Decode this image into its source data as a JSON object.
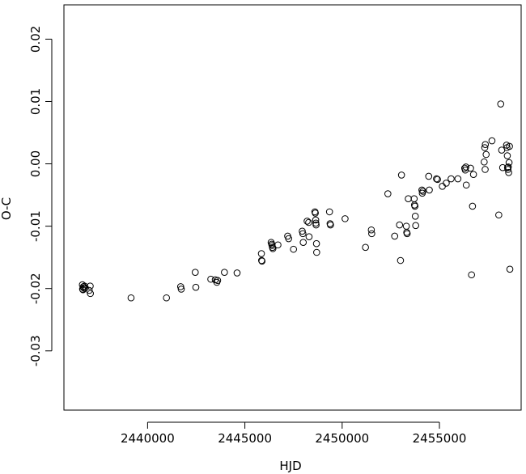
{
  "chart_data": {
    "type": "scatter",
    "title": "",
    "xlabel": "HJD",
    "ylabel": "O-C",
    "xlim": [
      2435700,
      2459200
    ],
    "ylim": [
      -0.0395,
      0.0255
    ],
    "grid": false,
    "x_ticks": [
      2440000,
      2445000,
      2450000,
      2455000
    ],
    "x_tick_labels": [
      "2440000",
      "2445000",
      "2450000",
      "2455000"
    ],
    "y_ticks": [
      -0.03,
      -0.02,
      -0.01,
      0.0,
      0.01,
      0.02
    ],
    "y_tick_labels": [
      "-0.03",
      "-0.02",
      "-0.01",
      "0.00",
      "0.01",
      "0.02"
    ],
    "marker": "open-circle",
    "series": [
      {
        "points": [
          [
            2436650,
            -0.0194
          ],
          [
            2436700,
            -0.0197
          ],
          [
            2436720,
            -0.0199
          ],
          [
            2436680,
            -0.0202
          ],
          [
            2436760,
            -0.0196
          ],
          [
            2436800,
            -0.0199
          ],
          [
            2436660,
            -0.0201
          ],
          [
            2437050,
            -0.0196
          ],
          [
            2437000,
            -0.0203
          ],
          [
            2437060,
            -0.0208
          ],
          [
            2439150,
            -0.0215
          ],
          [
            2440970,
            -0.0215
          ],
          [
            2441700,
            -0.0197
          ],
          [
            2441730,
            -0.0201
          ],
          [
            2442450,
            -0.0174
          ],
          [
            2442480,
            -0.0198
          ],
          [
            2443250,
            -0.0185
          ],
          [
            2443480,
            -0.0186
          ],
          [
            2443600,
            -0.0187
          ],
          [
            2443560,
            -0.019
          ],
          [
            2443950,
            -0.0174
          ],
          [
            2444600,
            -0.0175
          ],
          [
            2445850,
            -0.0144
          ],
          [
            2445860,
            -0.0155
          ],
          [
            2445880,
            -0.0156
          ],
          [
            2446350,
            -0.0126
          ],
          [
            2446380,
            -0.0129
          ],
          [
            2446400,
            -0.0131
          ],
          [
            2446420,
            -0.0134
          ],
          [
            2446440,
            -0.0136
          ],
          [
            2446700,
            -0.013
          ],
          [
            2447200,
            -0.0116
          ],
          [
            2447250,
            -0.012
          ],
          [
            2447500,
            -0.0137
          ],
          [
            2447950,
            -0.0108
          ],
          [
            2447980,
            -0.0112
          ],
          [
            2448000,
            -0.0126
          ],
          [
            2448200,
            -0.0092
          ],
          [
            2448280,
            -0.0094
          ],
          [
            2448300,
            -0.0117
          ],
          [
            2448600,
            -0.0077
          ],
          [
            2448620,
            -0.0079
          ],
          [
            2448640,
            -0.009
          ],
          [
            2448650,
            -0.0095
          ],
          [
            2448660,
            -0.0098
          ],
          [
            2448680,
            -0.0128
          ],
          [
            2448690,
            -0.0142
          ],
          [
            2449350,
            -0.0077
          ],
          [
            2449380,
            -0.0096
          ],
          [
            2449400,
            -0.0098
          ],
          [
            2450150,
            -0.0088
          ],
          [
            2451200,
            -0.0134
          ],
          [
            2451500,
            -0.0106
          ],
          [
            2451520,
            -0.0112
          ],
          [
            2452350,
            -0.0048
          ],
          [
            2452700,
            -0.0116
          ],
          [
            2452950,
            -0.0098
          ],
          [
            2453000,
            -0.0155
          ],
          [
            2453050,
            -0.0018
          ],
          [
            2453300,
            -0.01
          ],
          [
            2453320,
            -0.011
          ],
          [
            2453340,
            -0.0112
          ],
          [
            2453400,
            -0.0056
          ],
          [
            2453700,
            -0.0056
          ],
          [
            2453720,
            -0.0066
          ],
          [
            2453740,
            -0.0068
          ],
          [
            2453760,
            -0.0084
          ],
          [
            2453780,
            -0.0099
          ],
          [
            2454100,
            -0.0042
          ],
          [
            2454120,
            -0.0047
          ],
          [
            2454150,
            -0.0044
          ],
          [
            2454450,
            -0.002
          ],
          [
            2454480,
            -0.0042
          ],
          [
            2454850,
            -0.0024
          ],
          [
            2454900,
            -0.0025
          ],
          [
            2455150,
            -0.0036
          ],
          [
            2455350,
            -0.0031
          ],
          [
            2455600,
            -0.0024
          ],
          [
            2455950,
            -0.0024
          ],
          [
            2456300,
            -0.0007
          ],
          [
            2456330,
            -0.001
          ],
          [
            2456360,
            -0.0005
          ],
          [
            2456380,
            -0.0034
          ],
          [
            2456650,
            -0.0178
          ],
          [
            2456600,
            -0.0007
          ],
          [
            2456700,
            -0.0068
          ],
          [
            2456750,
            -0.0017
          ],
          [
            2457300,
            0.0003
          ],
          [
            2457330,
            0.0026
          ],
          [
            2457360,
            0.0031
          ],
          [
            2457400,
            0.0015
          ],
          [
            2457350,
            -0.0009
          ],
          [
            2457700,
            0.0037
          ],
          [
            2458050,
            -0.0082
          ],
          [
            2458150,
            0.0096
          ],
          [
            2458200,
            0.0022
          ],
          [
            2458250,
            -0.0006
          ],
          [
            2458450,
            0.003
          ],
          [
            2458470,
            0.0026
          ],
          [
            2458490,
            0.0013
          ],
          [
            2458500,
            -0.0006
          ],
          [
            2458520,
            -0.0009
          ],
          [
            2458540,
            -0.0005
          ],
          [
            2458560,
            -0.0014
          ],
          [
            2458580,
            0.0002
          ],
          [
            2458600,
            0.0028
          ],
          [
            2458620,
            -0.0169
          ]
        ]
      }
    ]
  }
}
